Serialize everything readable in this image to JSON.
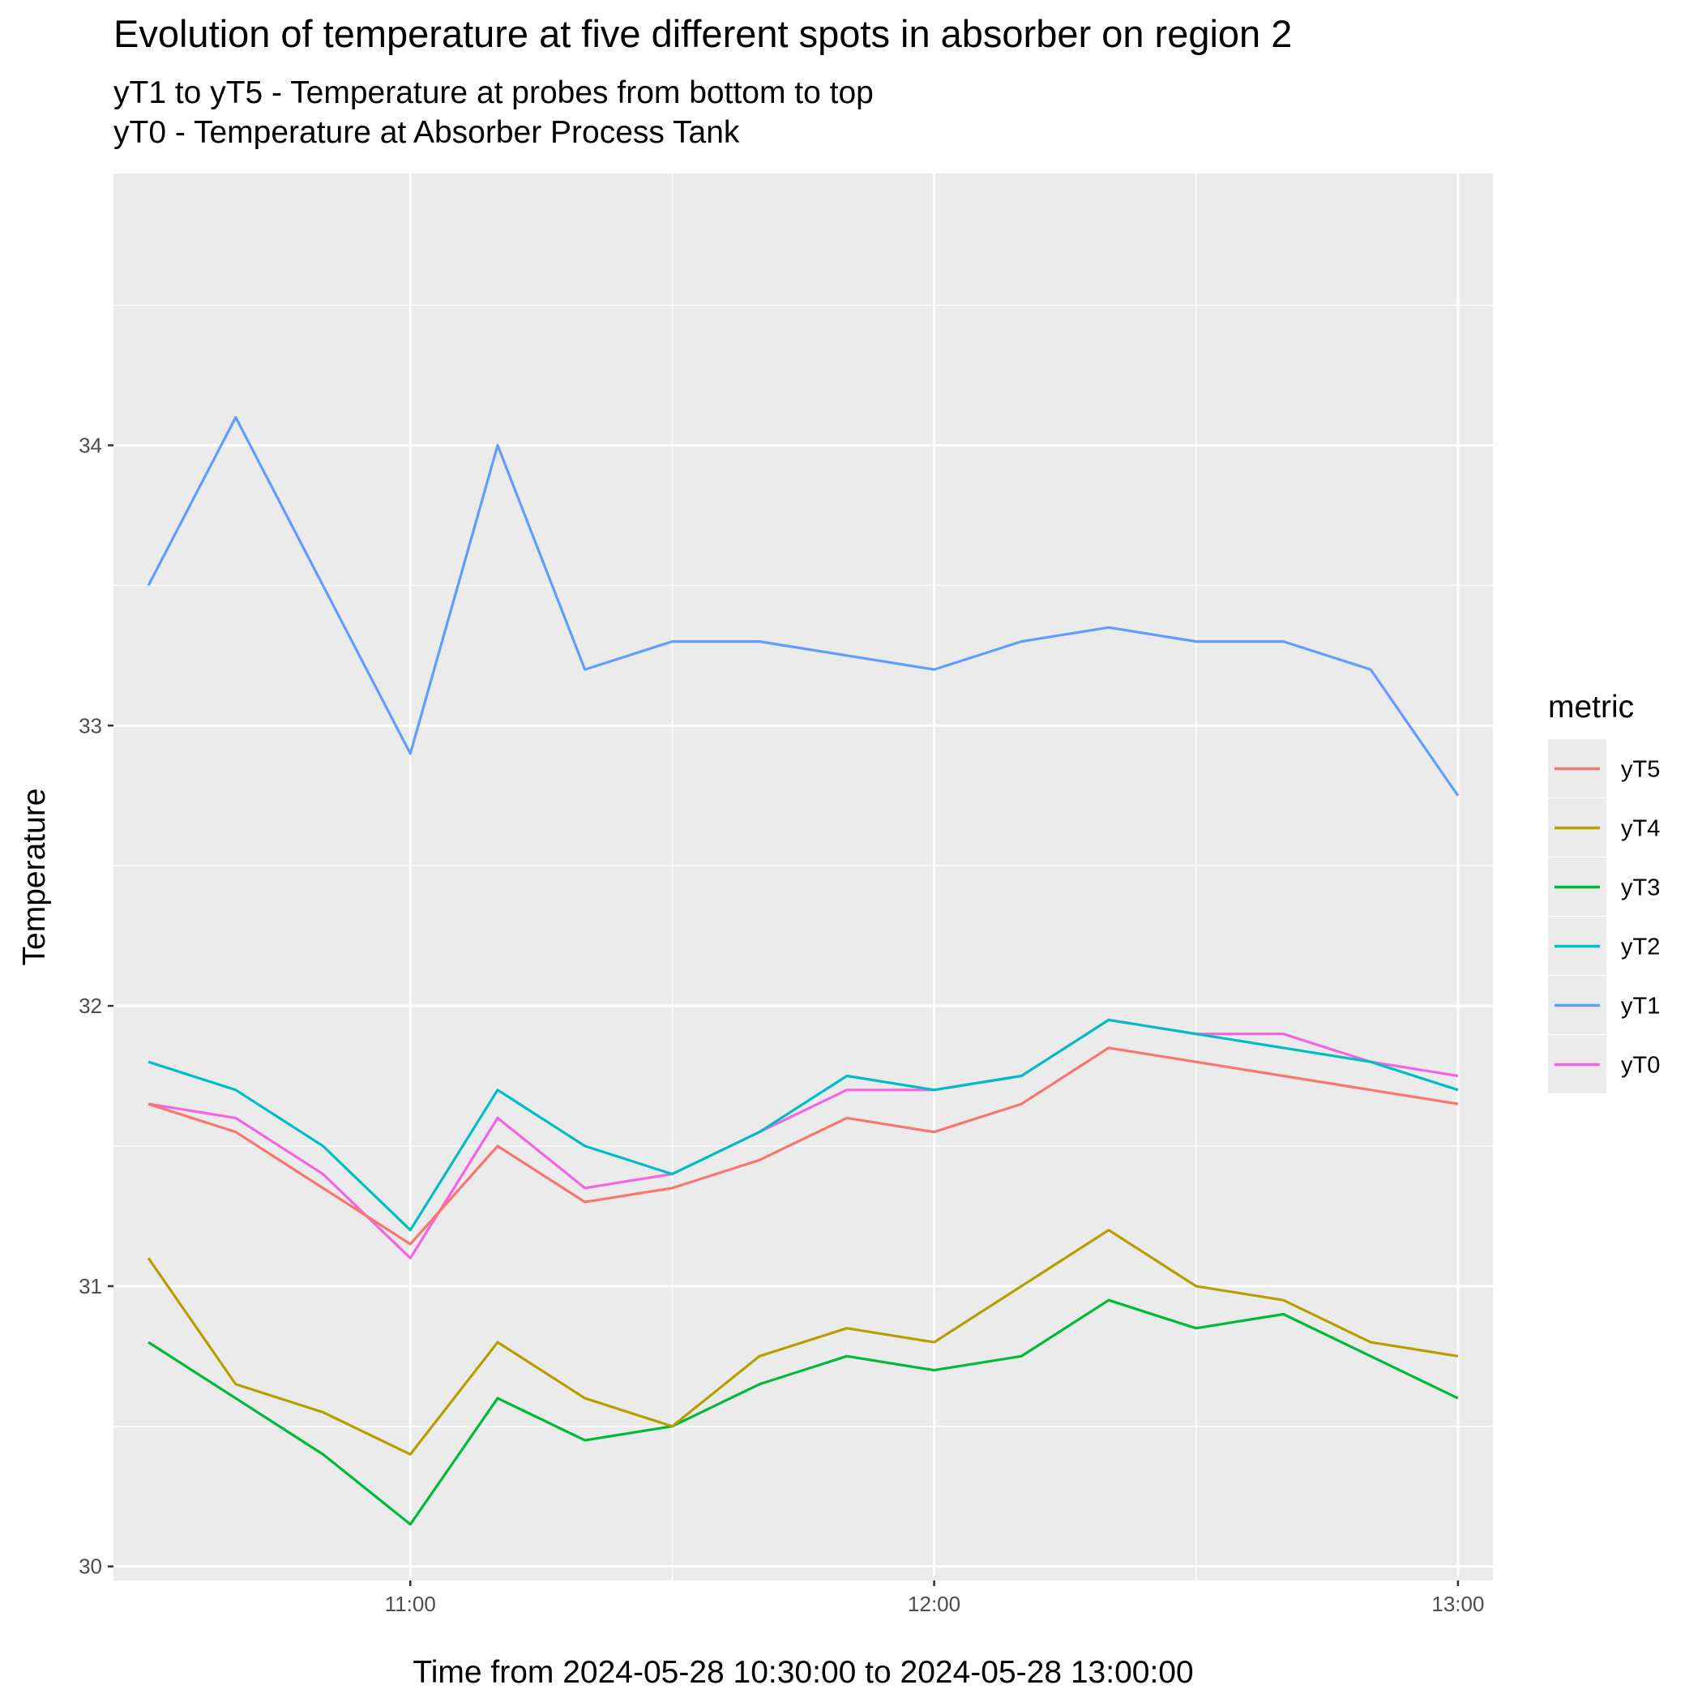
{
  "chart_data": {
    "type": "line",
    "title": "Evolution of temperature at five different spots in absorber on region 2",
    "subtitle": [
      "yT1 to yT5 - Temperature at probes from bottom to top",
      "yT0 - Temperature at Absorber Process Tank"
    ],
    "xlabel": "Time from 2024-05-28 10:30:00 to 2024-05-28 13:00:00",
    "ylabel": "Temperature",
    "xlim": [
      "10:26",
      "13:04"
    ],
    "ylim": [
      29.95,
      34.97
    ],
    "x_ticks": [
      "11:00",
      "12:00",
      "13:00"
    ],
    "y_ticks": [
      30,
      31,
      32,
      33,
      34
    ],
    "grid": true,
    "legend": {
      "title": "metric",
      "position": "right"
    },
    "x": [
      "10:30",
      "10:40",
      "10:50",
      "11:00",
      "11:10",
      "11:20",
      "11:30",
      "11:40",
      "11:50",
      "12:00",
      "12:10",
      "12:20",
      "12:30",
      "12:40",
      "12:50",
      "13:00"
    ],
    "series": [
      {
        "name": "yT5",
        "color": "#F8766D",
        "values": [
          31.65,
          31.55,
          31.35,
          31.15,
          31.5,
          31.3,
          31.35,
          31.45,
          31.6,
          31.55,
          31.65,
          31.85,
          31.8,
          31.75,
          31.7,
          31.65
        ]
      },
      {
        "name": "yT4",
        "color": "#B79F00",
        "values": [
          31.1,
          30.65,
          30.55,
          30.4,
          30.8,
          30.6,
          30.5,
          30.75,
          30.85,
          30.8,
          31.0,
          31.2,
          31.0,
          30.95,
          30.8,
          30.75
        ]
      },
      {
        "name": "yT3",
        "color": "#00BA38",
        "values": [
          30.8,
          30.6,
          30.4,
          30.15,
          30.6,
          30.45,
          30.5,
          30.65,
          30.75,
          30.7,
          30.75,
          30.95,
          30.85,
          30.9,
          30.75,
          30.6
        ]
      },
      {
        "name": "yT2",
        "color": "#00BFC4",
        "values": [
          31.8,
          31.7,
          31.5,
          31.2,
          31.7,
          31.5,
          31.4,
          31.55,
          31.75,
          31.7,
          31.75,
          31.95,
          31.9,
          31.85,
          31.8,
          31.7
        ]
      },
      {
        "name": "yT1",
        "color": "#619CFF",
        "values": [
          33.5,
          34.1,
          33.5,
          32.9,
          34.0,
          33.2,
          33.3,
          33.3,
          33.25,
          33.2,
          33.3,
          33.35,
          33.3,
          33.3,
          33.2,
          32.75
        ]
      },
      {
        "name": "yT0",
        "color": "#F564E3",
        "values": [
          31.65,
          31.6,
          31.4,
          31.1,
          31.6,
          31.35,
          31.4,
          31.55,
          31.7,
          31.7,
          31.75,
          31.95,
          31.9,
          31.9,
          31.8,
          31.75
        ]
      }
    ]
  }
}
